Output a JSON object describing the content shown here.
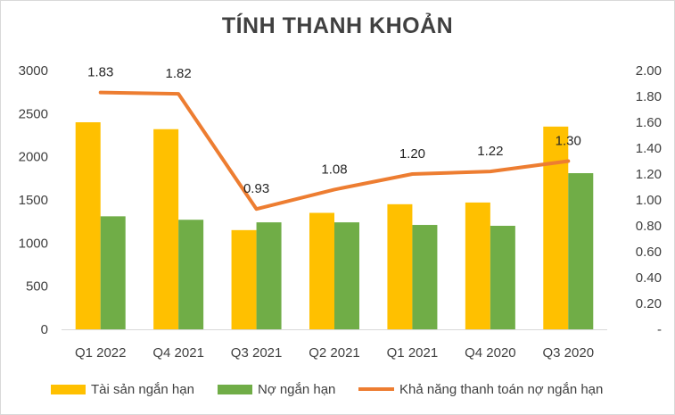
{
  "chart_data": {
    "type": "bar",
    "title": "TÍNH THANH KHOẢN",
    "categories": [
      "Q1 2022",
      "Q4 2021",
      "Q3 2021",
      "Q2 2021",
      "Q1 2021",
      "Q4 2020",
      "Q3 2020"
    ],
    "series": [
      {
        "name": "Tài sản ngắn hạn",
        "type": "bar",
        "axis": "left",
        "color": "#ffc000",
        "values": [
          2400,
          2320,
          1150,
          1350,
          1450,
          1470,
          2350
        ]
      },
      {
        "name": "Nợ ngắn hạn",
        "type": "bar",
        "axis": "left",
        "color": "#70ad47",
        "values": [
          1310,
          1270,
          1240,
          1240,
          1210,
          1200,
          1810
        ]
      },
      {
        "name": "Khả năng thanh toán nợ ngắn hạn",
        "type": "line",
        "axis": "right",
        "color": "#ed7d31",
        "values": [
          1.83,
          1.82,
          0.93,
          1.08,
          1.2,
          1.22,
          1.3
        ],
        "labels": [
          "1.83",
          "1.82",
          "0.93",
          "1.08",
          "1.20",
          "1.22",
          "1.30"
        ]
      }
    ],
    "y_left": {
      "min": 0,
      "max": 3000,
      "ticks": [
        "0",
        "500",
        "1000",
        "1500",
        "2000",
        "2500",
        "3000"
      ]
    },
    "y_right": {
      "min": 0,
      "max": 2.0,
      "ticks": [
        "-",
        "0.20",
        "0.40",
        "0.60",
        "0.80",
        "1.00",
        "1.20",
        "1.40",
        "1.60",
        "1.80",
        "2.00"
      ]
    },
    "grid": false,
    "legend_position": "bottom"
  }
}
